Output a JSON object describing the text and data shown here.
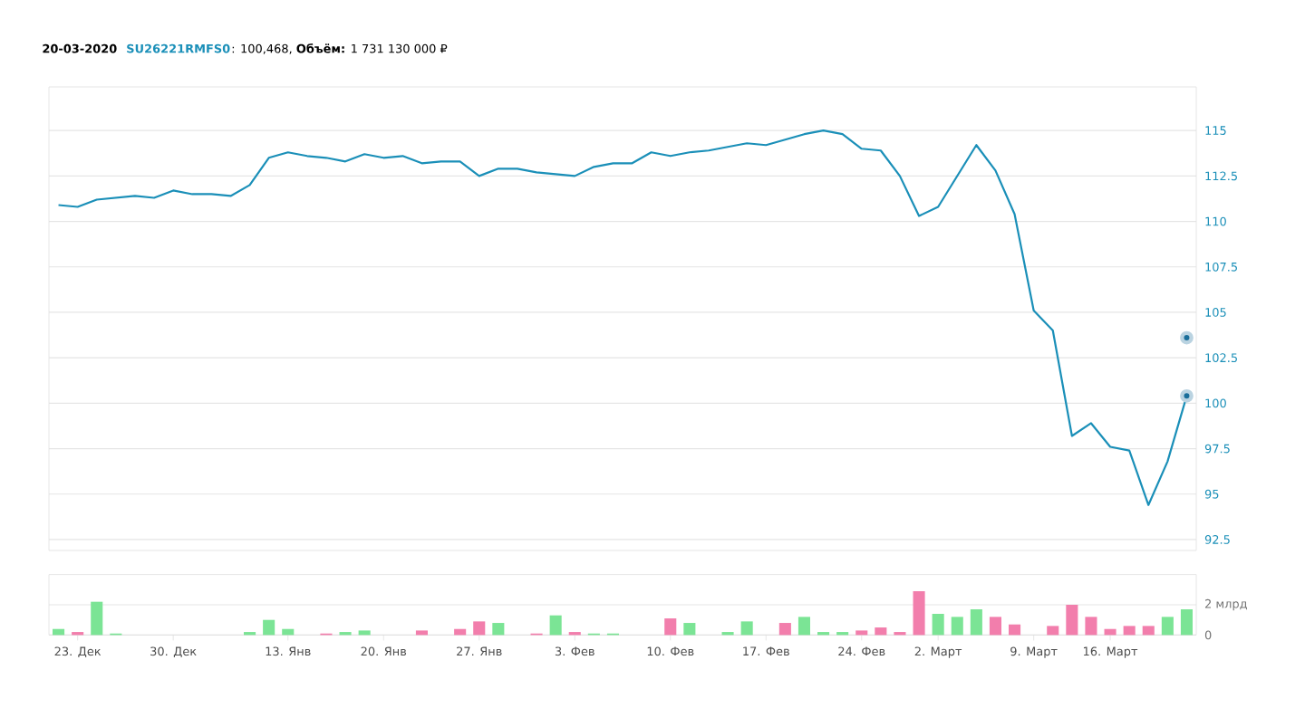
{
  "chart_data": [
    {
      "type": "line",
      "title": "20-03-2020",
      "subtitle": "SU26221RMFS0",
      "annotations": [
        ": 100,468, **Объём:** 1 731 130 000 ₽"
      ],
      "series": [
        {
          "color": "#1a8fb8",
          "values": [
            110.9,
            110.8,
            111.2,
            111.3,
            111.4,
            111.3,
            111.7,
            111.5,
            111.5,
            111.4,
            112.0,
            113.5,
            113.8,
            113.6,
            113.5,
            113.3,
            113.7,
            113.5,
            113.6,
            113.2,
            113.3,
            113.3,
            112.5,
            112.9,
            112.9,
            112.7,
            112.6,
            112.5,
            113.0,
            113.2,
            113.2,
            113.8,
            113.6,
            113.8,
            113.9,
            114.1,
            114.3,
            114.2,
            114.5,
            114.8,
            115.0,
            114.8,
            114.0,
            113.9,
            112.5,
            110.3,
            110.8,
            112.5,
            114.2,
            112.8,
            110.4,
            105.1,
            104.0,
            98.2,
            98.9,
            97.6,
            97.4,
            94.4,
            96.8,
            100.4
          ]
        },
        {
          "type": "scatter",
          "color": "#1a6e9a",
          "values": [
            null,
            null,
            null,
            null,
            null,
            null,
            null,
            null,
            null,
            null,
            null,
            null,
            null,
            null,
            null,
            null,
            null,
            null,
            null,
            null,
            null,
            null,
            null,
            null,
            null,
            null,
            null,
            null,
            null,
            null,
            null,
            null,
            null,
            null,
            null,
            null,
            null,
            null,
            null,
            null,
            null,
            null,
            null,
            null,
            null,
            null,
            null,
            null,
            null,
            null,
            null,
            null,
            null,
            null,
            null,
            null,
            null,
            null,
            null,
            103.6
          ]
        },
        {
          "type": "scatter",
          "color": "#1a6e9a",
          "values": [
            null,
            null,
            null,
            null,
            null,
            null,
            null,
            null,
            null,
            null,
            null,
            null,
            null,
            null,
            null,
            null,
            null,
            null,
            null,
            null,
            null,
            null,
            null,
            null,
            null,
            null,
            null,
            null,
            null,
            null,
            null,
            null,
            null,
            null,
            null,
            null,
            null,
            null,
            null,
            null,
            null,
            null,
            null,
            null,
            null,
            null,
            null,
            null,
            null,
            null,
            null,
            null,
            null,
            null,
            null,
            null,
            null,
            null,
            null,
            100.4
          ]
        }
      ],
      "ylim": [
        91.9,
        117.4
      ],
      "yticks": [
        92.5,
        95,
        97.5,
        100,
        102.5,
        105,
        107.5,
        110,
        112.5,
        115
      ],
      "grid": "y",
      "tick_labels": "y"
    },
    {
      "type": "bar",
      "categories": [
        null,
        "23. Дек",
        null,
        null,
        null,
        null,
        "30. Дек",
        null,
        null,
        null,
        null,
        null,
        "13. Янв",
        null,
        null,
        null,
        null,
        "20. Янв",
        null,
        null,
        null,
        null,
        "27. Янв",
        null,
        null,
        null,
        null,
        "3. Фев",
        null,
        null,
        null,
        null,
        "10. Фев",
        null,
        null,
        null,
        null,
        "17. Фев",
        null,
        null,
        null,
        null,
        "24. Фев",
        null,
        null,
        null,
        "2. Март",
        null,
        null,
        null,
        null,
        "9. Март",
        null,
        null,
        null,
        "16. Март",
        null,
        null,
        null,
        null
      ],
      "values": [
        0.4,
        0.2,
        2.2,
        0.1,
        null,
        null,
        null,
        null,
        null,
        null,
        0.2,
        1.0,
        0.4,
        null,
        0.1,
        0.2,
        0.3,
        null,
        null,
        0.3,
        null,
        0.4,
        0.9,
        0.8,
        null,
        0.1,
        1.3,
        0.2,
        0.1,
        0.1,
        null,
        null,
        1.1,
        0.8,
        null,
        0.2,
        0.9,
        null,
        0.8,
        1.2,
        0.2,
        0.2,
        0.3,
        0.5,
        0.2,
        2.9,
        1.4,
        1.2,
        1.7,
        1.2,
        0.7,
        null,
        0.6,
        2.0,
        1.2,
        0.4,
        0.6,
        0.6,
        1.2,
        1.7
      ],
      "colors": [
        "#7be495",
        "#f27eac",
        "#7be495",
        "#7be495",
        null,
        null,
        null,
        null,
        null,
        null,
        "#7be495",
        "#7be495",
        "#7be495",
        null,
        "#f27eac",
        "#7be495",
        "#7be495",
        null,
        null,
        "#f27eac",
        null,
        "#f27eac",
        "#f27eac",
        "#7be495",
        null,
        "#f27eac",
        "#7be495",
        "#f27eac",
        "#7be495",
        "#7be495",
        null,
        null,
        "#f27eac",
        "#7be495",
        null,
        "#7be495",
        "#7be495",
        null,
        "#f27eac",
        "#7be495",
        "#7be495",
        "#7be495",
        "#f27eac",
        "#f27eac",
        "#f27eac",
        "#f27eac",
        "#7be495",
        "#7be495",
        "#7be495",
        "#f27eac",
        "#f27eac",
        null,
        "#f27eac",
        "#f27eac",
        "#f27eac",
        "#f27eac",
        "#f27eac",
        "#f27eac",
        "#7be495",
        "#7be495"
      ],
      "ylim": [
        0,
        4
      ],
      "yticks": [
        0,
        {
          "value": 2,
          "label": "2 млрд"
        }
      ],
      "grid": "y"
    }
  ]
}
